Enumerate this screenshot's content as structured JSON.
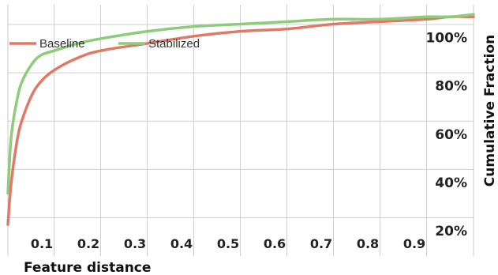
{
  "chart_data": {
    "type": "line",
    "xlabel": "Feature distance",
    "ylabel": "Cumulative Fraction",
    "x_ticks": [
      "0.1",
      "0.2",
      "0.3",
      "0.4",
      "0.5",
      "0.6",
      "0.7",
      "0.8",
      "0.9"
    ],
    "x_tick_values": [
      0.1,
      0.2,
      0.3,
      0.4,
      0.5,
      0.6,
      0.7,
      0.8,
      0.9
    ],
    "y_ticks": [
      "20%",
      "40%",
      "60%",
      "80%",
      "100%"
    ],
    "y_tick_values": [
      0.2,
      0.4,
      0.6,
      0.8,
      1.0
    ],
    "xlim": [
      0.0,
      1.0
    ],
    "ylim": [
      0.04,
      1.08
    ],
    "grid": true,
    "legend_position": "top-left",
    "y_axis_side": "right",
    "series": [
      {
        "name": "Baseline",
        "color": "#e07a66",
        "x": [
          0.0,
          0.005,
          0.01,
          0.02,
          0.03,
          0.05,
          0.07,
          0.1,
          0.15,
          0.2,
          0.3,
          0.4,
          0.5,
          0.6,
          0.7,
          0.8,
          0.9,
          0.95,
          1.0
        ],
        "y": [
          0.17,
          0.3,
          0.39,
          0.52,
          0.6,
          0.7,
          0.76,
          0.81,
          0.86,
          0.89,
          0.92,
          0.95,
          0.97,
          0.98,
          1.0,
          1.01,
          1.02,
          1.03,
          1.03
        ]
      },
      {
        "name": "Stabilized",
        "color": "#8fcc7a",
        "x": [
          0.0,
          0.005,
          0.01,
          0.02,
          0.03,
          0.05,
          0.07,
          0.1,
          0.15,
          0.2,
          0.3,
          0.4,
          0.5,
          0.6,
          0.7,
          0.8,
          0.9,
          0.95,
          1.0
        ],
        "y": [
          0.3,
          0.48,
          0.58,
          0.69,
          0.76,
          0.83,
          0.87,
          0.89,
          0.92,
          0.94,
          0.97,
          0.99,
          1.0,
          1.01,
          1.02,
          1.02,
          1.03,
          1.03,
          1.04
        ]
      }
    ]
  }
}
